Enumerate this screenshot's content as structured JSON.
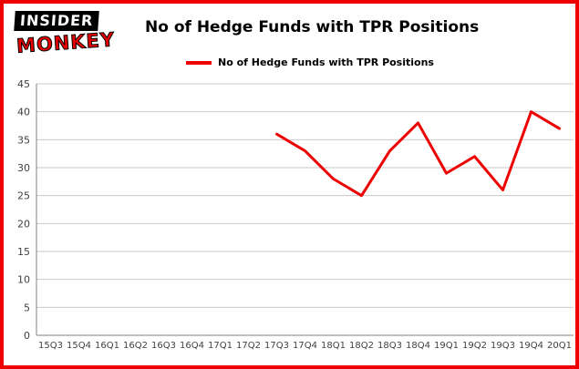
{
  "logo": {
    "top": "INSIDER",
    "bottom": "MONKEY"
  },
  "header": {
    "title": "No of Hedge Funds with TPR Positions"
  },
  "legend": {
    "label": "No of Hedge Funds with TPR Positions"
  },
  "colors": {
    "accent_red": "#ee0000",
    "grid": "#c9c9c9",
    "axis": "#808080",
    "tick_text": "#404040"
  },
  "chart_data": {
    "type": "line",
    "title": "No of Hedge Funds with TPR Positions",
    "categories": [
      "15Q3",
      "15Q4",
      "16Q1",
      "16Q2",
      "16Q3",
      "16Q4",
      "17Q1",
      "17Q2",
      "17Q3",
      "17Q4",
      "18Q1",
      "18Q2",
      "18Q3",
      "18Q4",
      "19Q1",
      "19Q2",
      "19Q3",
      "19Q4",
      "20Q1"
    ],
    "values": [
      null,
      null,
      null,
      null,
      null,
      null,
      null,
      null,
      36,
      33,
      28,
      25,
      33,
      38,
      29,
      32,
      26,
      40,
      37
    ],
    "xlabel": "",
    "ylabel": "",
    "ylim": [
      0,
      45
    ],
    "ytick_step": 5,
    "grid": true,
    "legend_position": "top-left",
    "line_color": "#ee0000"
  }
}
